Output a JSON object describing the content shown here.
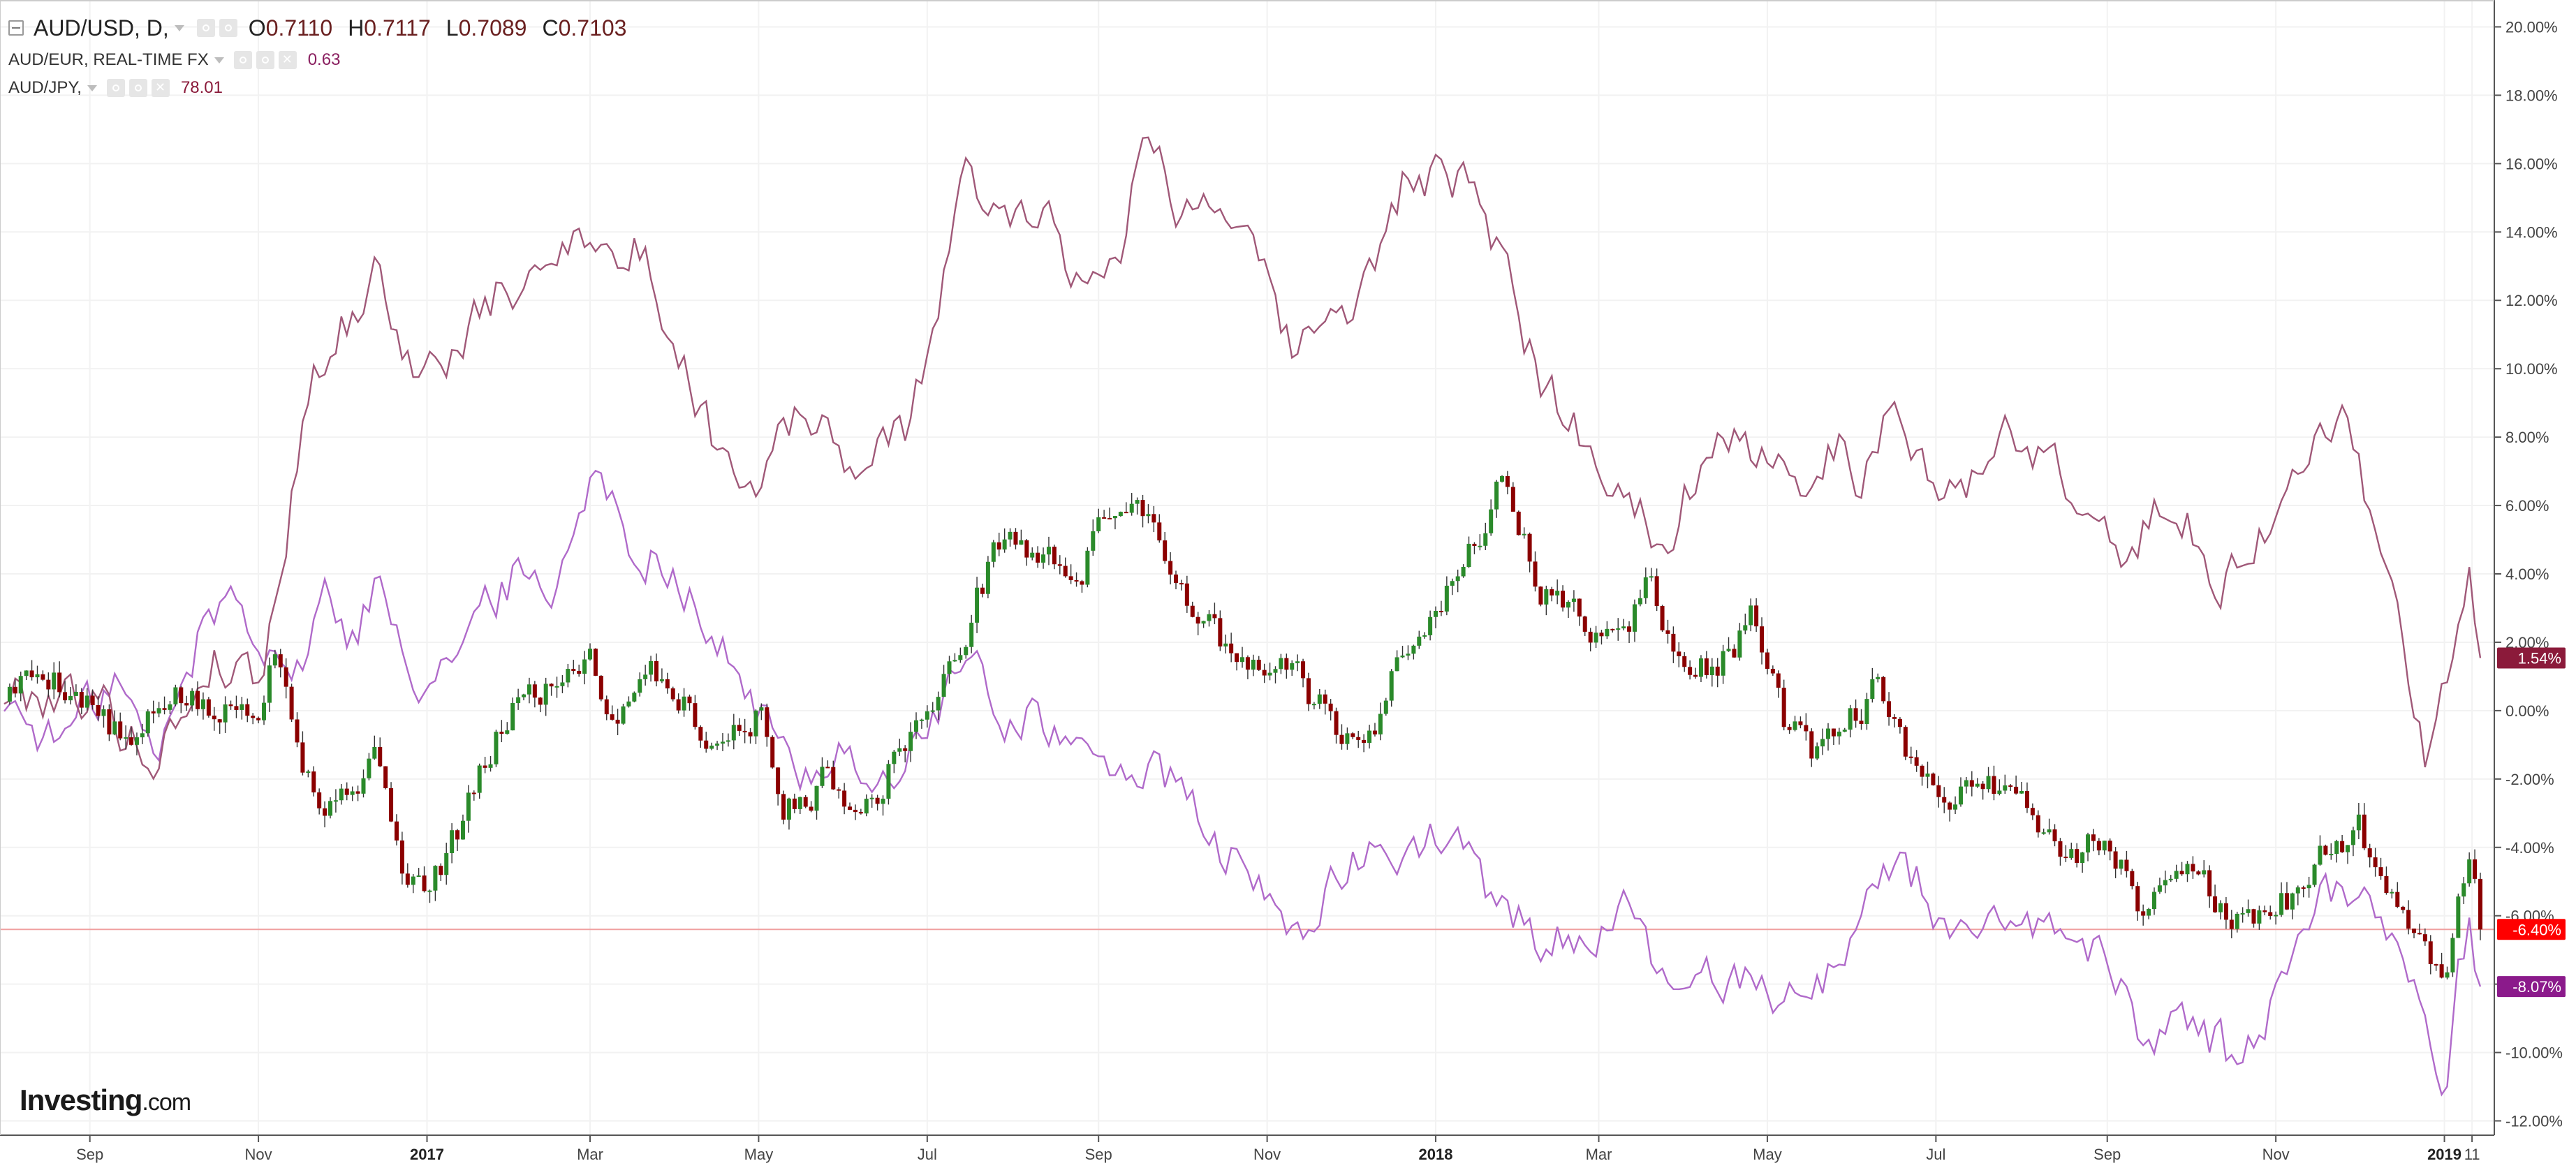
{
  "legend": {
    "main": {
      "symbol": "AUD/USD, D,",
      "o_label": "O",
      "o": "0.7110",
      "h_label": "H",
      "h": "0.7117",
      "l_label": "L",
      "l": "0.7089",
      "c_label": "C",
      "c": "0.7103"
    },
    "compare1": {
      "symbol": "AUD/EUR, REAL-TIME FX",
      "value": "0.63",
      "color": "#8a2060"
    },
    "compare2": {
      "symbol": "AUD/JPY,",
      "value": "78.01",
      "color": "#8a1a3a"
    }
  },
  "logo": {
    "brand": "Investing",
    "tld": ".com"
  },
  "colors": {
    "up": "#2a8a2a",
    "down": "#8b0000",
    "aud_eur": "#b06aca",
    "aud_jpy": "#a05878",
    "price_line": "#f0a0a0",
    "grid": "#f2f2f2"
  },
  "chart_data": {
    "type": "line",
    "title": "AUD/USD, D,",
    "xlabel": "",
    "ylabel": "",
    "y_axis_format": "percent",
    "ylim": [
      -12.5,
      20.5
    ],
    "y_ticks": [
      "20.00%",
      "18.00%",
      "16.00%",
      "14.00%",
      "12.00%",
      "10.00%",
      "8.00%",
      "6.00%",
      "4.00%",
      "2.00%",
      "0.00%",
      "-2.00%",
      "-4.00%",
      "-6.00%",
      "-8.00%",
      "-10.00%",
      "-12.00%"
    ],
    "x_range": [
      "2016-08-01",
      "2019-01-14"
    ],
    "x_ticks": [
      {
        "date": "2016-09-01",
        "label": "Sep",
        "bold": false
      },
      {
        "date": "2016-11-01",
        "label": "Nov",
        "bold": false
      },
      {
        "date": "2017-01-01",
        "label": "2017",
        "bold": true
      },
      {
        "date": "2017-03-01",
        "label": "Mar",
        "bold": false
      },
      {
        "date": "2017-05-01",
        "label": "May",
        "bold": false
      },
      {
        "date": "2017-07-01",
        "label": "Jul",
        "bold": false
      },
      {
        "date": "2017-09-01",
        "label": "Sep",
        "bold": false
      },
      {
        "date": "2017-11-01",
        "label": "Nov",
        "bold": false
      },
      {
        "date": "2018-01-01",
        "label": "2018",
        "bold": true
      },
      {
        "date": "2018-03-01",
        "label": "Mar",
        "bold": false
      },
      {
        "date": "2018-05-01",
        "label": "May",
        "bold": false
      },
      {
        "date": "2018-07-01",
        "label": "Jul",
        "bold": false
      },
      {
        "date": "2018-09-01",
        "label": "Sep",
        "bold": false
      },
      {
        "date": "2018-11-01",
        "label": "Nov",
        "bold": false
      },
      {
        "date": "2019-01-01",
        "label": "2019",
        "bold": true
      },
      {
        "date": "2019-01-11",
        "label": "11",
        "bold": false
      }
    ],
    "series": [
      {
        "name": "AUD/USD, D,",
        "style": "candlestick-close",
        "last_label": "-6.40%",
        "label_color": "#ff0000",
        "points": [
          [
            "2016-08-01",
            0.5
          ],
          [
            "2016-08-16",
            1.2
          ],
          [
            "2016-09-01",
            0.2
          ],
          [
            "2016-09-16",
            -1.2
          ],
          [
            "2016-10-01",
            0.6
          ],
          [
            "2016-10-16",
            -0.2
          ],
          [
            "2016-11-01",
            0.3
          ],
          [
            "2016-11-08",
            2.1
          ],
          [
            "2016-11-16",
            -1.0
          ],
          [
            "2016-11-25",
            -3.0
          ],
          [
            "2016-12-05",
            -2.0
          ],
          [
            "2016-12-15",
            -1.5
          ],
          [
            "2016-12-25",
            -5.0
          ],
          [
            "2017-01-02",
            -5.3
          ],
          [
            "2017-01-15",
            -3.0
          ],
          [
            "2017-02-01",
            0.2
          ],
          [
            "2017-02-16",
            0.8
          ],
          [
            "2017-03-01",
            1.8
          ],
          [
            "2017-03-10",
            -0.5
          ],
          [
            "2017-03-20",
            1.5
          ],
          [
            "2017-04-01",
            0.5
          ],
          [
            "2017-04-16",
            -1.0
          ],
          [
            "2017-05-01",
            0.0
          ],
          [
            "2017-05-10",
            -3.0
          ],
          [
            "2017-05-25",
            -2.0
          ],
          [
            "2017-06-10",
            -2.8
          ],
          [
            "2017-06-25",
            -0.5
          ],
          [
            "2017-07-05",
            0.2
          ],
          [
            "2017-07-20",
            3.5
          ],
          [
            "2017-07-28",
            5.2
          ],
          [
            "2017-08-10",
            4.5
          ],
          [
            "2017-08-25",
            4.0
          ],
          [
            "2017-09-08",
            6.2
          ],
          [
            "2017-09-20",
            5.8
          ],
          [
            "2017-10-01",
            3.5
          ],
          [
            "2017-10-15",
            2.0
          ],
          [
            "2017-10-25",
            1.0
          ],
          [
            "2017-11-10",
            1.3
          ],
          [
            "2017-11-25",
            -0.5
          ],
          [
            "2017-12-08",
            -1.0
          ],
          [
            "2017-12-20",
            2.0
          ],
          [
            "2018-01-10",
            4.0
          ],
          [
            "2018-01-26",
            6.8
          ],
          [
            "2018-02-08",
            3.5
          ],
          [
            "2018-02-20",
            2.8
          ],
          [
            "2018-03-08",
            2.0
          ],
          [
            "2018-03-20",
            3.8
          ],
          [
            "2018-04-01",
            1.0
          ],
          [
            "2018-04-16",
            1.5
          ],
          [
            "2018-04-25",
            2.6
          ],
          [
            "2018-05-08",
            -0.5
          ],
          [
            "2018-05-20",
            -1.5
          ],
          [
            "2018-06-01",
            -0.2
          ],
          [
            "2018-06-10",
            0.8
          ],
          [
            "2018-06-20",
            -1.5
          ],
          [
            "2018-07-01",
            -2.5
          ],
          [
            "2018-07-16",
            -2.0
          ],
          [
            "2018-08-01",
            -2.5
          ],
          [
            "2018-08-16",
            -4.5
          ],
          [
            "2018-09-01",
            -3.5
          ],
          [
            "2018-09-14",
            -6.0
          ],
          [
            "2018-10-01",
            -4.0
          ],
          [
            "2018-10-16",
            -6.5
          ],
          [
            "2018-11-01",
            -6.0
          ],
          [
            "2018-11-15",
            -4.5
          ],
          [
            "2018-12-01",
            -3.5
          ],
          [
            "2018-12-15",
            -5.5
          ],
          [
            "2018-12-25",
            -7.0
          ],
          [
            "2019-01-02",
            -7.8
          ],
          [
            "2019-01-05",
            -5.5
          ],
          [
            "2019-01-10",
            -4.2
          ],
          [
            "2019-01-14",
            -6.4
          ]
        ]
      },
      {
        "name": "AUD/EUR, REAL-TIME FX",
        "style": "line",
        "last_label": "-8.07%",
        "label_color": "#8b1a8b",
        "points": [
          [
            "2016-08-01",
            0.3
          ],
          [
            "2016-08-20",
            -1.0
          ],
          [
            "2016-09-10",
            1.0
          ],
          [
            "2016-09-25",
            -1.5
          ],
          [
            "2016-10-10",
            2.0
          ],
          [
            "2016-10-20",
            3.5
          ],
          [
            "2016-11-01",
            2.5
          ],
          [
            "2016-11-15",
            1.0
          ],
          [
            "2016-11-25",
            3.5
          ],
          [
            "2016-12-05",
            2.0
          ],
          [
            "2016-12-15",
            4.0
          ],
          [
            "2016-12-28",
            1.0
          ],
          [
            "2017-01-15",
            2.0
          ],
          [
            "2017-02-01",
            4.0
          ],
          [
            "2017-02-16",
            3.5
          ],
          [
            "2017-03-01",
            7.2
          ],
          [
            "2017-03-15",
            5.0
          ],
          [
            "2017-04-01",
            4.2
          ],
          [
            "2017-04-15",
            2.0
          ],
          [
            "2017-05-01",
            0.0
          ],
          [
            "2017-05-15",
            -2.0
          ],
          [
            "2017-06-01",
            -1.0
          ],
          [
            "2017-06-16",
            -2.5
          ],
          [
            "2017-07-01",
            -0.5
          ],
          [
            "2017-07-15",
            1.5
          ],
          [
            "2017-07-28",
            -0.2
          ],
          [
            "2017-08-10",
            0.0
          ],
          [
            "2017-08-25",
            -1.5
          ],
          [
            "2017-09-10",
            -1.5
          ],
          [
            "2017-09-25",
            -2.0
          ],
          [
            "2017-10-10",
            -3.5
          ],
          [
            "2017-10-25",
            -5.0
          ],
          [
            "2017-11-10",
            -6.5
          ],
          [
            "2017-11-20",
            -5.5
          ],
          [
            "2017-12-05",
            -4.5
          ],
          [
            "2017-12-20",
            -4.0
          ],
          [
            "2018-01-10",
            -3.8
          ],
          [
            "2018-01-20",
            -5.5
          ],
          [
            "2018-02-05",
            -6.5
          ],
          [
            "2018-02-20",
            -6.8
          ],
          [
            "2018-03-10",
            -6.0
          ],
          [
            "2018-03-25",
            -8.0
          ],
          [
            "2018-04-10",
            -8.0
          ],
          [
            "2018-04-25",
            -7.5
          ],
          [
            "2018-05-10",
            -8.5
          ],
          [
            "2018-05-25",
            -7.5
          ],
          [
            "2018-06-10",
            -5.0
          ],
          [
            "2018-06-20",
            -4.2
          ],
          [
            "2018-07-01",
            -6.0
          ],
          [
            "2018-07-15",
            -6.8
          ],
          [
            "2018-08-01",
            -6.5
          ],
          [
            "2018-08-16",
            -6.2
          ],
          [
            "2018-09-01",
            -7.5
          ],
          [
            "2018-09-15",
            -9.5
          ],
          [
            "2018-10-01",
            -9.0
          ],
          [
            "2018-10-15",
            -10.0
          ],
          [
            "2018-11-01",
            -8.5
          ],
          [
            "2018-11-15",
            -5.5
          ],
          [
            "2018-12-01",
            -5.0
          ],
          [
            "2018-12-15",
            -6.5
          ],
          [
            "2018-12-25",
            -9.5
          ],
          [
            "2019-01-03",
            -11.0
          ],
          [
            "2019-01-05",
            -8.0
          ],
          [
            "2019-01-10",
            -6.5
          ],
          [
            "2019-01-14",
            -8.07
          ]
        ]
      },
      {
        "name": "AUD/JPY,",
        "style": "line",
        "last_label": "1.54%",
        "label_color": "#8b1a3a",
        "points": [
          [
            "2016-08-01",
            0.5
          ],
          [
            "2016-09-01",
            0.5
          ],
          [
            "2016-09-25",
            -1.5
          ],
          [
            "2016-10-15",
            1.5
          ],
          [
            "2016-11-01",
            1.0
          ],
          [
            "2016-11-08",
            3.5
          ],
          [
            "2016-11-20",
            10.0
          ],
          [
            "2016-12-05",
            11.5
          ],
          [
            "2016-12-15",
            13.0
          ],
          [
            "2016-12-28",
            9.5
          ],
          [
            "2017-01-10",
            10.5
          ],
          [
            "2017-01-25",
            12.0
          ],
          [
            "2017-02-10",
            12.5
          ],
          [
            "2017-02-25",
            14.5
          ],
          [
            "2017-03-10",
            13.0
          ],
          [
            "2017-03-20",
            13.5
          ],
          [
            "2017-04-01",
            10.5
          ],
          [
            "2017-04-15",
            8.0
          ],
          [
            "2017-05-01",
            6.5
          ],
          [
            "2017-05-10",
            9.0
          ],
          [
            "2017-05-25",
            8.0
          ],
          [
            "2017-06-10",
            7.0
          ],
          [
            "2017-06-25",
            8.5
          ],
          [
            "2017-07-05",
            12.0
          ],
          [
            "2017-07-15",
            15.5
          ],
          [
            "2017-07-28",
            14.5
          ],
          [
            "2017-08-10",
            15.0
          ],
          [
            "2017-08-25",
            12.5
          ],
          [
            "2017-09-08",
            13.5
          ],
          [
            "2017-09-20",
            17.3
          ],
          [
            "2017-10-01",
            14.5
          ],
          [
            "2017-10-15",
            15.2
          ],
          [
            "2017-10-25",
            13.5
          ],
          [
            "2017-11-10",
            10.5
          ],
          [
            "2017-11-25",
            11.5
          ],
          [
            "2017-12-08",
            12.5
          ],
          [
            "2017-12-20",
            15.5
          ],
          [
            "2018-01-10",
            15.5
          ],
          [
            "2018-01-26",
            13.0
          ],
          [
            "2018-02-08",
            9.5
          ],
          [
            "2018-02-20",
            8.5
          ],
          [
            "2018-03-08",
            6.5
          ],
          [
            "2018-03-25",
            5.0
          ],
          [
            "2018-04-10",
            8.0
          ],
          [
            "2018-04-25",
            7.5
          ],
          [
            "2018-05-10",
            6.5
          ],
          [
            "2018-05-25",
            8.0
          ],
          [
            "2018-06-05",
            6.5
          ],
          [
            "2018-06-15",
            9.8
          ],
          [
            "2018-06-25",
            7.0
          ],
          [
            "2018-07-10",
            6.0
          ],
          [
            "2018-07-25",
            8.5
          ],
          [
            "2018-08-10",
            7.5
          ],
          [
            "2018-08-25",
            5.5
          ],
          [
            "2018-09-10",
            4.5
          ],
          [
            "2018-09-25",
            6.5
          ],
          [
            "2018-10-10",
            3.5
          ],
          [
            "2018-10-25",
            5.0
          ],
          [
            "2018-11-10",
            7.0
          ],
          [
            "2018-11-25",
            8.8
          ],
          [
            "2018-12-05",
            6.0
          ],
          [
            "2018-12-15",
            3.0
          ],
          [
            "2018-12-25",
            -1.5
          ],
          [
            "2019-01-03",
            1.0
          ],
          [
            "2019-01-10",
            3.5
          ],
          [
            "2019-01-14",
            1.54
          ]
        ]
      }
    ]
  }
}
